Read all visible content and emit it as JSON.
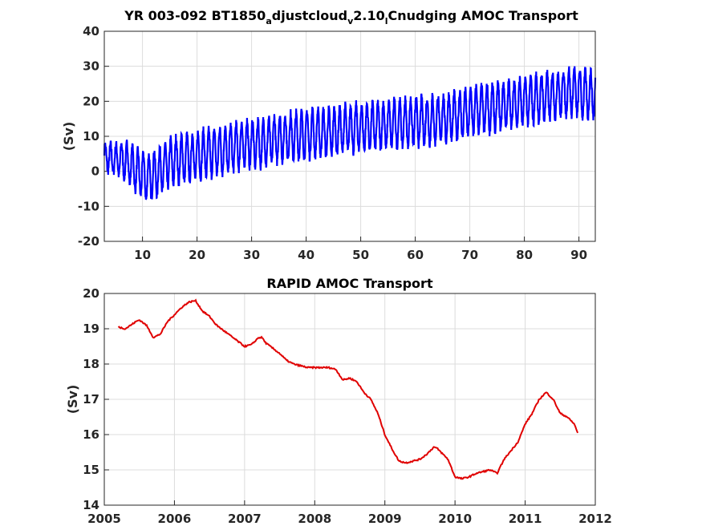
{
  "chart_data": [
    {
      "type": "line",
      "title_parts": [
        "YR 003-092 BT1850",
        "a",
        "djustcloud",
        "v",
        "2.10",
        "l",
        "Cnudging AMOC Transport"
      ],
      "xlabel": "",
      "ylabel": "(Sv)",
      "xlim": [
        3,
        93
      ],
      "ylim": [
        -20,
        40
      ],
      "xticks": [
        10,
        20,
        30,
        40,
        50,
        60,
        70,
        80,
        90
      ],
      "yticks": [
        -20,
        -10,
        0,
        10,
        20,
        30,
        40
      ],
      "grid": true,
      "color": "#0000ff",
      "series": [
        {
          "x": [
            3.0,
            5.0,
            7.0,
            9.0,
            11.0,
            13.0,
            15.0,
            17.0,
            20.0,
            23.0,
            26.0,
            29.0,
            32.0,
            35.0,
            38.0,
            41.0,
            44.0,
            47.0,
            50.0,
            53.0,
            56.0,
            59.0,
            62.0,
            65.0,
            68.0,
            71.0,
            74.0,
            77.0,
            80.0,
            83.0,
            86.0,
            89.0,
            91.0,
            93.0
          ],
          "y": [
            4.0,
            3.5,
            3.0,
            0.0,
            -2.0,
            0.0,
            2.5,
            3.5,
            4.5,
            5.5,
            6.5,
            8.0,
            8.0,
            9.5,
            10.0,
            11.0,
            11.0,
            12.0,
            12.5,
            13.0,
            13.5,
            14.0,
            14.5,
            15.0,
            16.0,
            17.5,
            18.0,
            19.0,
            20.0,
            21.0,
            22.0,
            23.0,
            22.0,
            22.0
          ],
          "amplitude": [
            3.5,
            4.0,
            5.0,
            6.0,
            6.5,
            6.5,
            6.5,
            6.5,
            6.5,
            6.5,
            6.5,
            6.5,
            6.5,
            6.5,
            6.5,
            6.5,
            6.5,
            6.5,
            6.5,
            6.5,
            6.5,
            6.5,
            6.5,
            6.5,
            6.5,
            6.5,
            6.5,
            6.5,
            6.5,
            6.5,
            6.5,
            6.5,
            6.5,
            6.5
          ]
        }
      ]
    },
    {
      "type": "line",
      "title": "RAPID AMOC Transport",
      "xlabel": "",
      "ylabel": "(Sv)",
      "xlim": [
        2005,
        2012
      ],
      "ylim": [
        14,
        20
      ],
      "xticks": [
        2005,
        2006,
        2007,
        2008,
        2009,
        2010,
        2011,
        2012
      ],
      "yticks": [
        14,
        15,
        16,
        17,
        18,
        19,
        20
      ],
      "grid": true,
      "color": "#e00000",
      "series": [
        {
          "x": [
            2005.2,
            2005.3,
            2005.45,
            2005.5,
            2005.6,
            2005.7,
            2005.8,
            2005.9,
            2006.0,
            2006.1,
            2006.2,
            2006.3,
            2006.4,
            2006.5,
            2006.6,
            2006.7,
            2006.8,
            2006.9,
            2007.0,
            2007.1,
            2007.2,
            2007.25,
            2007.3,
            2007.4,
            2007.5,
            2007.6,
            2007.7,
            2007.8,
            2007.9,
            2008.0,
            2008.1,
            2008.2,
            2008.3,
            2008.4,
            2008.5,
            2008.6,
            2008.7,
            2008.8,
            2008.9,
            2009.0,
            2009.1,
            2009.2,
            2009.3,
            2009.4,
            2009.5,
            2009.6,
            2009.7,
            2009.75,
            2009.8,
            2009.9,
            2010.0,
            2010.1,
            2010.2,
            2010.3,
            2010.4,
            2010.5,
            2010.6,
            2010.7,
            2010.8,
            2010.9,
            2011.0,
            2011.1,
            2011.2,
            2011.3,
            2011.4,
            2011.5,
            2011.6,
            2011.7,
            2011.75
          ],
          "y": [
            19.05,
            19.0,
            19.2,
            19.25,
            19.1,
            18.75,
            18.85,
            19.2,
            19.4,
            19.6,
            19.75,
            19.8,
            19.5,
            19.35,
            19.1,
            18.95,
            18.8,
            18.65,
            18.5,
            18.55,
            18.75,
            18.75,
            18.6,
            18.45,
            18.3,
            18.1,
            18.0,
            17.95,
            17.9,
            17.9,
            17.9,
            17.9,
            17.85,
            17.55,
            17.6,
            17.5,
            17.2,
            17.0,
            16.6,
            16.0,
            15.6,
            15.25,
            15.2,
            15.25,
            15.3,
            15.45,
            15.65,
            15.6,
            15.5,
            15.3,
            14.8,
            14.75,
            14.8,
            14.9,
            14.95,
            15.0,
            14.9,
            15.3,
            15.55,
            15.8,
            16.3,
            16.6,
            17.0,
            17.2,
            17.0,
            16.6,
            16.5,
            16.3,
            16.05
          ]
        }
      ]
    }
  ]
}
